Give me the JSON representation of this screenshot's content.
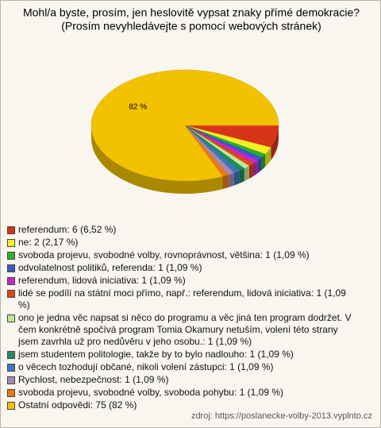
{
  "chart_data": {
    "type": "pie",
    "title": "Mohl/a byste, prosím, jen heslovitě vypsat znaky přímé demokracie?",
    "subtitle": "(Prosím nevyhledávejte s pomocí webových stránek)",
    "categories": [
      "referendum: 6 (6,52 %)",
      "ne: 2 (2,17 %)",
      "svoboda projevu, svobodné volby, rovnoprávnost, většina: 1 (1,09 %)",
      "odvolatelnost politiků, referenda: 1 (1,09 %)",
      "referendum, lidová iniciativa: 1 (1,09 %)",
      "lidé se podílí na státní moci přímo, např.: referendum, lidová iniciativa: 1 (1,09 %)",
      "ono je jedna věc napsat si něco do programu a věc jiná ten program dodržet. V čem konkrétně spočívá program Tomia Okamury netuším, volení této strany jsem zavrhla už pro nedůvěru v jeho osobu.: 1 (1,09 %)",
      "jsem studentem politologie, takže by to bylo nadlouho: 1 (1,09 %)",
      "o věcech tozhodují občané, nikoli volení zástupci: 1 (1,09 %)",
      "Rychlost, nebezpečnost: 1 (1,09 %)",
      "svoboda projevu, svobodné volby, svoboda pohybu: 1 (1,09 %)",
      "Ostatní odpovědi: 75 (82 %)"
    ],
    "values": [
      6.52,
      2.17,
      1.09,
      1.09,
      1.09,
      1.09,
      1.09,
      1.09,
      1.09,
      1.09,
      1.09,
      82
    ],
    "value_labels": [
      null,
      null,
      null,
      null,
      null,
      null,
      null,
      null,
      null,
      null,
      null,
      "82 %"
    ],
    "colors": [
      "#d8341a",
      "#f4f024",
      "#2cb02c",
      "#3a58d0",
      "#c828c8",
      "#e24418",
      "#c0e890",
      "#208a62",
      "#3a78b8",
      "#a888b8",
      "#ea7a14",
      "#f2c200"
    ],
    "source": "zdroj: https://poslanecke-volby-2013.vyplnto.cz"
  }
}
